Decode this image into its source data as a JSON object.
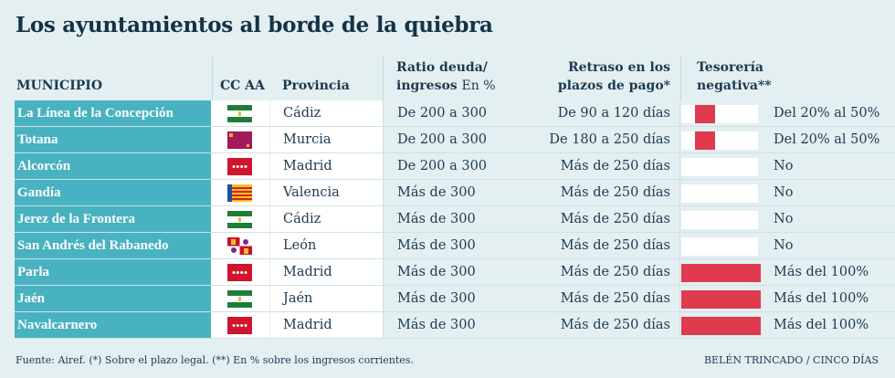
{
  "title": "Los ayuntamientos al borde de la quiebra",
  "headers": {
    "municipio": "MUNICIPIO",
    "ccaa": "CC AA",
    "provincia": "Provincia",
    "ratio_1": "Ratio deuda/",
    "ratio_2": "ingresos",
    "ratio_unit": "En %",
    "retraso_1": "Retraso en los",
    "retraso_2": "plazos de pago*",
    "tes_1": "Tesorería",
    "tes_2": "negativa**"
  },
  "rows": [
    {
      "municipio": "La Línea de la Concepción",
      "ccaa_flag": "andalucia",
      "provincia": "Cádiz",
      "ratio": "De 200 a 300",
      "retraso": "De 90 a 120 días",
      "tesoreria": "Del 20% al 50%",
      "tes_level": 0.35
    },
    {
      "municipio": "Totana",
      "ccaa_flag": "murcia",
      "provincia": "Murcia",
      "ratio": "De 200 a 300",
      "retraso": "De 180 a 250 días",
      "tesoreria": "Del 20% al 50%",
      "tes_level": 0.35
    },
    {
      "municipio": "Alcorcón",
      "ccaa_flag": "madrid",
      "provincia": "Madrid",
      "ratio": "De 200 a 300",
      "retraso": "Más de 250 días",
      "tesoreria": "No",
      "tes_level": 0
    },
    {
      "municipio": "Gandía",
      "ccaa_flag": "valencia",
      "provincia": "Valencia",
      "ratio": "Más de 300",
      "retraso": "Más de 250 días",
      "tesoreria": "No",
      "tes_level": 0
    },
    {
      "municipio": "Jerez de la Frontera",
      "ccaa_flag": "andalucia",
      "provincia": "Cádiz",
      "ratio": "Más de 300",
      "retraso": "Más de 250 días",
      "tesoreria": "No",
      "tes_level": 0
    },
    {
      "municipio": "San Andrés del Rabanedo",
      "ccaa_flag": "castilla-leon",
      "provincia": "León",
      "ratio": "Más de 300",
      "retraso": "Más de 250 días",
      "tesoreria": "No",
      "tes_level": 0
    },
    {
      "municipio": "Parla",
      "ccaa_flag": "madrid",
      "provincia": "Madrid",
      "ratio": "Más de 300",
      "retraso": "Más de 250 días",
      "tesoreria": "Más del 100%",
      "tes_level": 1
    },
    {
      "municipio": "Jaén",
      "ccaa_flag": "andalucia",
      "provincia": "Jaén",
      "ratio": "Más de 300",
      "retraso": "Más de 250 días",
      "tesoreria": "Más del 100%",
      "tes_level": 1
    },
    {
      "municipio": "Navalcarnero",
      "ccaa_flag": "madrid",
      "provincia": "Madrid",
      "ratio": "Más de 300",
      "retraso": "Más de 250 días",
      "tesoreria": "Más del 100%",
      "tes_level": 1
    }
  ],
  "footer": {
    "source": "Fuente: Airef. (*) Sobre el plazo legal. (**) En % sobre los ingresos corrientes.",
    "credit": "BELÉN TRINCADO / CINCO DÍAS"
  },
  "colors": {
    "teal": "#49b2c1",
    "red": "#e03a4e",
    "bg": "#e3eff1"
  }
}
